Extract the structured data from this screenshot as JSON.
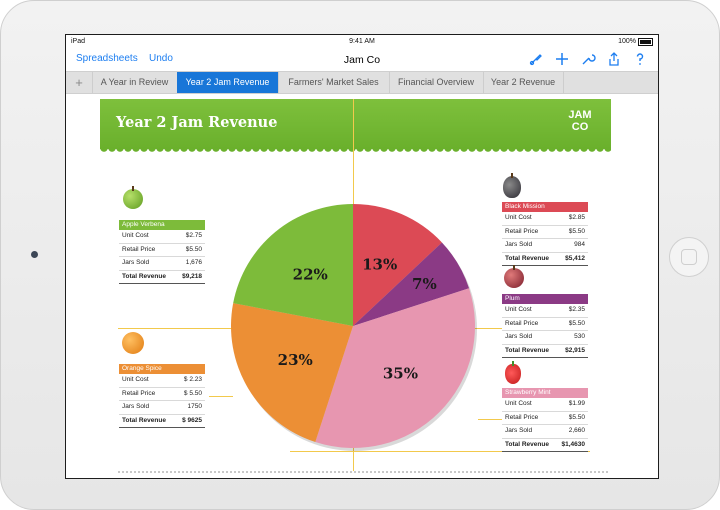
{
  "status": {
    "device": "iPad",
    "time": "9:41 AM",
    "battery": "100%"
  },
  "nav": {
    "back": "Spreadsheets",
    "undo": "Undo",
    "title": "Jam Co"
  },
  "nav_icons": [
    "format-brush-icon",
    "plus-icon",
    "wrench-icon",
    "share-icon",
    "help-icon"
  ],
  "tabs": [
    "A Year in Review",
    "Year 2 Jam Revenue",
    "Farmers' Market Sales",
    "Financial Overview",
    "Year 2 Revenue"
  ],
  "add_tab": "+",
  "banner": {
    "title": "Year 2 Jam Revenue",
    "logo_line1": "JAM",
    "logo_line2": "CO"
  },
  "row_labels": {
    "unit": "Unit Cost",
    "retail": "Retail Price",
    "jars": "Jars Sold",
    "total": "Total Revenue"
  },
  "products": {
    "apple": {
      "name": "Apple Verbena",
      "unit": "$2.75",
      "retail": "$5.50",
      "jars": "1,676",
      "total": "$9,218",
      "color": "#7dbb3a"
    },
    "orange": {
      "name": "Orange Spice",
      "unit": "$ 2.23",
      "retail": "$ 5.50",
      "jars": "1750",
      "total": "$ 9625",
      "color": "#ec8f35"
    },
    "black": {
      "name": "Black Mission",
      "unit": "$2.85",
      "retail": "$5.50",
      "jars": "984",
      "total": "$5,412",
      "color": "#dc4a55"
    },
    "plum": {
      "name": "Plum",
      "unit": "$2.35",
      "retail": "$5.50",
      "jars": "530",
      "total": "$2,915",
      "color": "#8b3a85"
    },
    "straw": {
      "name": "Strawberry Mint",
      "unit": "$1.99",
      "retail": "$5.50",
      "jars": "2,660",
      "total": "$1,4630",
      "color": "#e796b0"
    }
  },
  "chart_data": {
    "type": "pie",
    "slices": [
      {
        "label": "13%",
        "value": 13,
        "color": "#dc4a55"
      },
      {
        "label": "7%",
        "value": 7,
        "color": "#8b3a85"
      },
      {
        "label": "35%",
        "value": 35,
        "color": "#e796b0"
      },
      {
        "label": "23%",
        "value": 23,
        "color": "#ec8f35"
      },
      {
        "label": "22%",
        "value": 22,
        "color": "#7dbb3a"
      }
    ]
  }
}
